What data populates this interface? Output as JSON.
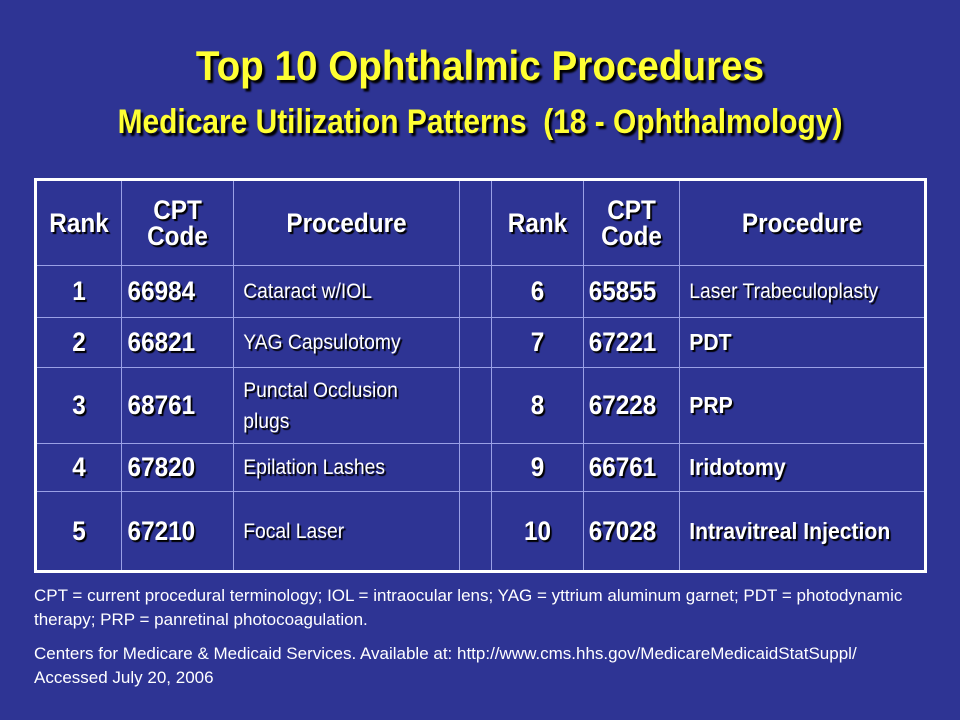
{
  "slide": {
    "title": "Top 10 Ophthalmic Procedures",
    "subtitle": "Medicare Utilization Patterns  (18 - Ophthalmology)"
  },
  "table": {
    "headers": {
      "rank": "Rank",
      "cpt_line1": "CPT",
      "cpt_line2": "Code",
      "procedure": "Procedure"
    },
    "left_rows": [
      {
        "rank": "1",
        "code": "66984",
        "procedure": "Cataract w/IOL"
      },
      {
        "rank": "2",
        "code": "66821",
        "procedure": "YAG Capsulotomy"
      },
      {
        "rank": "3",
        "code": "68761",
        "procedure": "Punctal Occlusion plugs"
      },
      {
        "rank": "4",
        "code": "67820",
        "procedure": "Epilation Lashes"
      },
      {
        "rank": "5",
        "code": "67210",
        "procedure": "Focal Laser"
      }
    ],
    "right_rows": [
      {
        "rank": "6",
        "code": "65855",
        "procedure": "Laser Trabeculoplasty"
      },
      {
        "rank": "7",
        "code": "67221",
        "procedure": "PDT"
      },
      {
        "rank": "8",
        "code": "67228",
        "procedure": "PRP"
      },
      {
        "rank": "9",
        "code": "66761",
        "procedure": "Iridotomy"
      },
      {
        "rank": "10",
        "code": "67028",
        "procedure": "Intravitreal Injection"
      }
    ]
  },
  "footnotes": {
    "abbreviations": "CPT = current procedural terminology; IOL = intraocular lens; YAG = yttrium aluminum garnet; PDT = photodynamic therapy; PRP = panretinal photocoagulation.",
    "source": "Centers for Medicare & Medicaid Services. Available at: http://www.cms.hhs.gov/MedicareMedicaidStatSuppl/ Accessed July 20, 2006"
  },
  "colors": {
    "background": "#2e3494",
    "title": "#ffff33",
    "highlight": "#ffff33",
    "text": "#ffffff"
  }
}
